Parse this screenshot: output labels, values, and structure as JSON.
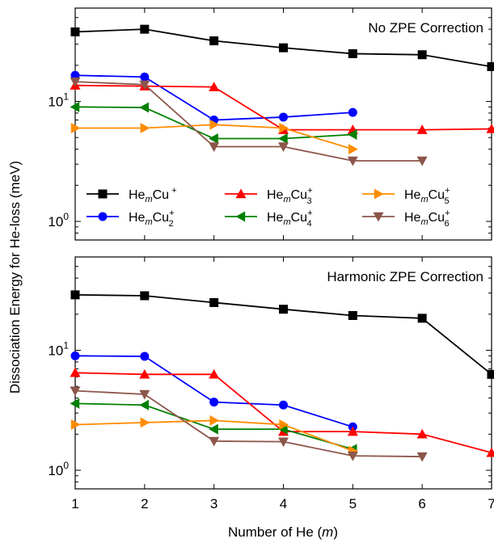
{
  "chart_data": {
    "type": "line",
    "shared_xlabel": {
      "pre": "Number of He (",
      "var": "m",
      "post": ")"
    },
    "shared_ylabel": "Dissociation Energy for He-loss (meV)",
    "x_ticks": [
      "1",
      "2",
      "3",
      "4",
      "5",
      "6",
      "7"
    ],
    "xlim": [
      1,
      7
    ],
    "yscale": "log",
    "ylim": [
      0.7,
      60
    ],
    "y_ticks": [
      {
        "value": 1,
        "base": "10",
        "exp": "0"
      },
      {
        "value": 10,
        "base": "10",
        "exp": "1"
      }
    ],
    "legend": {
      "placement": "lower-left",
      "panel": 0,
      "columns": 3
    },
    "series_styles": [
      {
        "key": "Cu1",
        "color": "#000000",
        "marker": "square",
        "label": {
          "pre": "He",
          "sub_m": "m",
          "mid": "Cu",
          "sup": "+",
          "sub": ""
        }
      },
      {
        "key": "Cu2",
        "color": "#0000ff",
        "marker": "circle",
        "label": {
          "pre": "He",
          "sub_m": "m",
          "mid": "Cu",
          "sup": "+",
          "sub": "2"
        }
      },
      {
        "key": "Cu3",
        "color": "#ff0000",
        "marker": "triangle-up",
        "label": {
          "pre": "He",
          "sub_m": "m",
          "mid": "Cu",
          "sup": "+",
          "sub": "3"
        }
      },
      {
        "key": "Cu4",
        "color": "#008000",
        "marker": "triangle-left",
        "label": {
          "pre": "He",
          "sub_m": "m",
          "mid": "Cu",
          "sup": "+",
          "sub": "4"
        }
      },
      {
        "key": "Cu5",
        "color": "#ff8c00",
        "marker": "triangle-right",
        "label": {
          "pre": "He",
          "sub_m": "m",
          "mid": "Cu",
          "sup": "+",
          "sub": "5"
        }
      },
      {
        "key": "Cu6",
        "color": "#8c564b",
        "marker": "triangle-down",
        "label": {
          "pre": "He",
          "sub_m": "m",
          "mid": "Cu",
          "sup": "+",
          "sub": "6"
        }
      }
    ],
    "panels": [
      {
        "title": "No ZPE Correction",
        "series": [
          {
            "key": "Cu1",
            "x": [
              1,
              2,
              3,
              4,
              5,
              6,
              7
            ],
            "y": [
              38,
              40,
              32,
              28,
              25,
              24.5,
              19.5
            ]
          },
          {
            "key": "Cu2",
            "x": [
              1,
              2,
              3,
              4,
              5
            ],
            "y": [
              16.5,
              16,
              7,
              7.4,
              8.1
            ]
          },
          {
            "key": "Cu3",
            "x": [
              1,
              2,
              3,
              4,
              5,
              6,
              7
            ],
            "y": [
              13.6,
              13.4,
              13.2,
              5.8,
              5.8,
              5.8,
              5.9
            ]
          },
          {
            "key": "Cu4",
            "x": [
              1,
              2,
              3,
              4,
              5
            ],
            "y": [
              9,
              8.9,
              4.9,
              4.9,
              5.3
            ]
          },
          {
            "key": "Cu5",
            "x": [
              1,
              2,
              3,
              4,
              5
            ],
            "y": [
              6,
              6,
              6.4,
              6,
              4
            ]
          },
          {
            "key": "Cu6",
            "x": [
              1,
              2,
              3,
              4,
              5,
              6
            ],
            "y": [
              14.6,
              13.8,
              4.2,
              4.2,
              3.2,
              3.2
            ]
          }
        ]
      },
      {
        "title": "Harmonic ZPE Correction",
        "series": [
          {
            "key": "Cu1",
            "x": [
              1,
              2,
              3,
              4,
              5,
              6,
              7
            ],
            "y": [
              29,
              28.5,
              25,
              22,
              19.5,
              18.5,
              6.3
            ]
          },
          {
            "key": "Cu2",
            "x": [
              1,
              2,
              3,
              4,
              5
            ],
            "y": [
              9,
              8.9,
              3.7,
              3.5,
              2.3
            ]
          },
          {
            "key": "Cu3",
            "x": [
              1,
              2,
              3,
              4,
              5,
              6,
              7
            ],
            "y": [
              6.5,
              6.3,
              6.3,
              2.1,
              2.1,
              2,
              1.4
            ]
          },
          {
            "key": "Cu4",
            "x": [
              1,
              2,
              3,
              4,
              5
            ],
            "y": [
              3.6,
              3.5,
              2.2,
              2.2,
              1.5
            ]
          },
          {
            "key": "Cu5",
            "x": [
              1,
              2,
              3,
              4,
              5
            ],
            "y": [
              2.4,
              2.5,
              2.6,
              2.4,
              1.45
            ]
          },
          {
            "key": "Cu6",
            "x": [
              1,
              2,
              3,
              4,
              5,
              6
            ],
            "y": [
              4.6,
              4.3,
              1.75,
              1.73,
              1.32,
              1.3
            ]
          }
        ]
      }
    ]
  }
}
